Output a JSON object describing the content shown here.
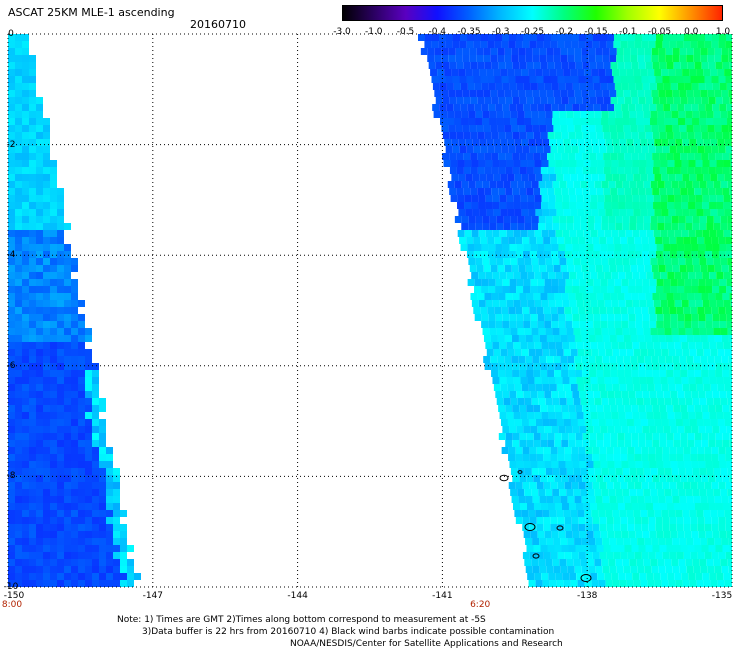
{
  "header": {
    "title": "ASCAT 25KM MLE-1 ascending",
    "date": "20160710"
  },
  "colorbar": {
    "labels": [
      "-3.0",
      "-1.0",
      "-0.5",
      "-0.4",
      "-0.35",
      "-0.3",
      "-0.25",
      "-0.2",
      "-0.15",
      "-0.1",
      "-0.05",
      "0.0",
      "1.0"
    ],
    "colors": [
      "#000000",
      "#2a0060",
      "#5a00c0",
      "#1010ff",
      "#0060ff",
      "#00b8ff",
      "#00ffff",
      "#00ff80",
      "#20ff00",
      "#a0ff00",
      "#ffff00",
      "#ff9000",
      "#ff2000"
    ]
  },
  "map": {
    "x_ticks": [
      "-150",
      "-147",
      "-144",
      "-141",
      "-138",
      "-135"
    ],
    "y_ticks": [
      "0",
      "-2",
      "-4",
      "-6",
      "-8",
      "-10"
    ],
    "x_range": [
      -150,
      -135
    ],
    "y_range": [
      0,
      -10
    ],
    "time_labels": [
      {
        "text": "8:00",
        "lon": -150
      },
      {
        "text": "6:20",
        "lon": -140.3
      }
    ],
    "colors": {
      "deep_blue": "#0a2aff",
      "blue": "#0060ff",
      "sky": "#00a8ff",
      "cyan": "#00ffff",
      "aqua_green": "#00ffb0",
      "green": "#00ff40"
    }
  },
  "notes": {
    "line1": "Note: 1) Times are GMT 2)Times along bottom correspond to measurement at -5S",
    "line2": "3)Data buffer is 22 hrs from 20160710 4) Black wind barbs indicate possible contamination",
    "line3": "NOAA/NESDIS/Center for Satellite Applications and Research"
  }
}
